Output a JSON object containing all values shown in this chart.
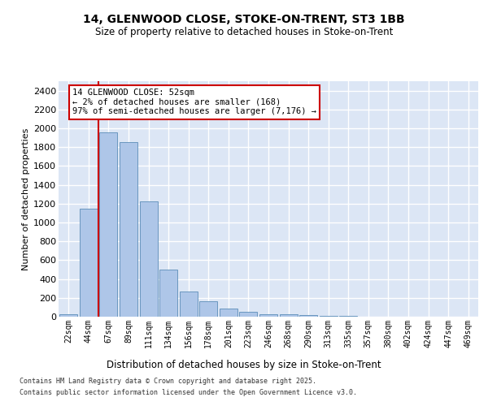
{
  "title_line1": "14, GLENWOOD CLOSE, STOKE-ON-TRENT, ST3 1BB",
  "title_line2": "Size of property relative to detached houses in Stoke-on-Trent",
  "xlabel": "Distribution of detached houses by size in Stoke-on-Trent",
  "ylabel": "Number of detached properties",
  "annotation_title": "14 GLENWOOD CLOSE: 52sqm",
  "annotation_line2": "← 2% of detached houses are smaller (168)",
  "annotation_line3": "97% of semi-detached houses are larger (7,176) →",
  "bar_color": "#aec6e8",
  "bar_edge_color": "#5b8db8",
  "vline_color": "#cc0000",
  "vline_bin_index": 1,
  "annotation_box_color": "#cc0000",
  "background_color": "#dce6f5",
  "categories": [
    "22sqm",
    "44sqm",
    "67sqm",
    "89sqm",
    "111sqm",
    "134sqm",
    "156sqm",
    "178sqm",
    "201sqm",
    "223sqm",
    "246sqm",
    "268sqm",
    "290sqm",
    "313sqm",
    "335sqm",
    "357sqm",
    "380sqm",
    "402sqm",
    "424sqm",
    "447sqm",
    "469sqm"
  ],
  "values": [
    25,
    1150,
    1960,
    1855,
    1220,
    500,
    270,
    165,
    88,
    48,
    28,
    28,
    18,
    10,
    5,
    3,
    2,
    1,
    1,
    0,
    0
  ],
  "ylim": [
    0,
    2500
  ],
  "yticks": [
    0,
    200,
    400,
    600,
    800,
    1000,
    1200,
    1400,
    1600,
    1800,
    2000,
    2200,
    2400
  ],
  "footer_line1": "Contains HM Land Registry data © Crown copyright and database right 2025.",
  "footer_line2": "Contains public sector information licensed under the Open Government Licence v3.0."
}
